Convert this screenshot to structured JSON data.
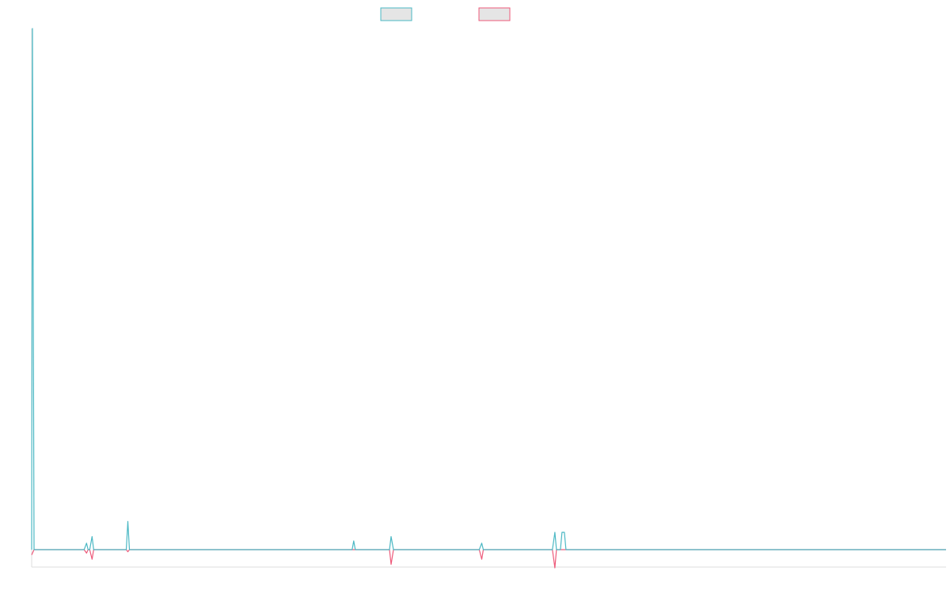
{
  "chart_data": {
    "type": "line",
    "title": "",
    "xlabel": "",
    "ylabel": "",
    "grid": false,
    "legend_position": "top-center",
    "colors": {
      "legend_fill": "#e5e5e5",
      "series_a": "#4bb8c4",
      "series_b": "#ee5a7a",
      "axis": "#dddddd"
    },
    "xlim": [
      0,
      115
    ],
    "ylim": [
      -4,
      120
    ],
    "series": [
      {
        "color": "#4bb8c4",
        "points": [
          [
            0,
            0
          ],
          [
            0.1,
            120
          ],
          [
            0.3,
            0
          ],
          [
            6.6,
            0
          ],
          [
            6.9,
            1.5
          ],
          [
            7.1,
            0
          ],
          [
            7.3,
            0
          ],
          [
            7.6,
            3
          ],
          [
            7.8,
            0
          ],
          [
            11.9,
            0
          ],
          [
            12.1,
            6.5
          ],
          [
            12.3,
            0
          ],
          [
            40.3,
            0
          ],
          [
            40.5,
            2
          ],
          [
            40.7,
            0
          ],
          [
            45.0,
            0
          ],
          [
            45.2,
            3
          ],
          [
            45.5,
            0
          ],
          [
            56.3,
            0
          ],
          [
            56.6,
            1.5
          ],
          [
            56.8,
            0
          ],
          [
            65.5,
            0
          ],
          [
            65.8,
            4
          ],
          [
            66.0,
            0
          ],
          [
            66.5,
            0
          ],
          [
            66.7,
            4
          ],
          [
            67.0,
            4
          ],
          [
            67.2,
            0
          ],
          [
            115,
            0
          ]
        ]
      },
      {
        "color": "#ee5a7a",
        "points": [
          [
            0,
            -1.2
          ],
          [
            0.3,
            0
          ],
          [
            6.6,
            0
          ],
          [
            6.9,
            -0.8
          ],
          [
            7.1,
            0
          ],
          [
            7.3,
            0
          ],
          [
            7.6,
            -2.2
          ],
          [
            7.8,
            0
          ],
          [
            11.9,
            0
          ],
          [
            12.1,
            -0.5
          ],
          [
            12.3,
            0
          ],
          [
            45.0,
            0
          ],
          [
            45.2,
            -3.4
          ],
          [
            45.5,
            0
          ],
          [
            56.3,
            0
          ],
          [
            56.6,
            -2.2
          ],
          [
            56.8,
            0
          ],
          [
            65.5,
            0
          ],
          [
            65.8,
            -4.2
          ],
          [
            66.0,
            0
          ],
          [
            115,
            0
          ]
        ]
      }
    ]
  }
}
